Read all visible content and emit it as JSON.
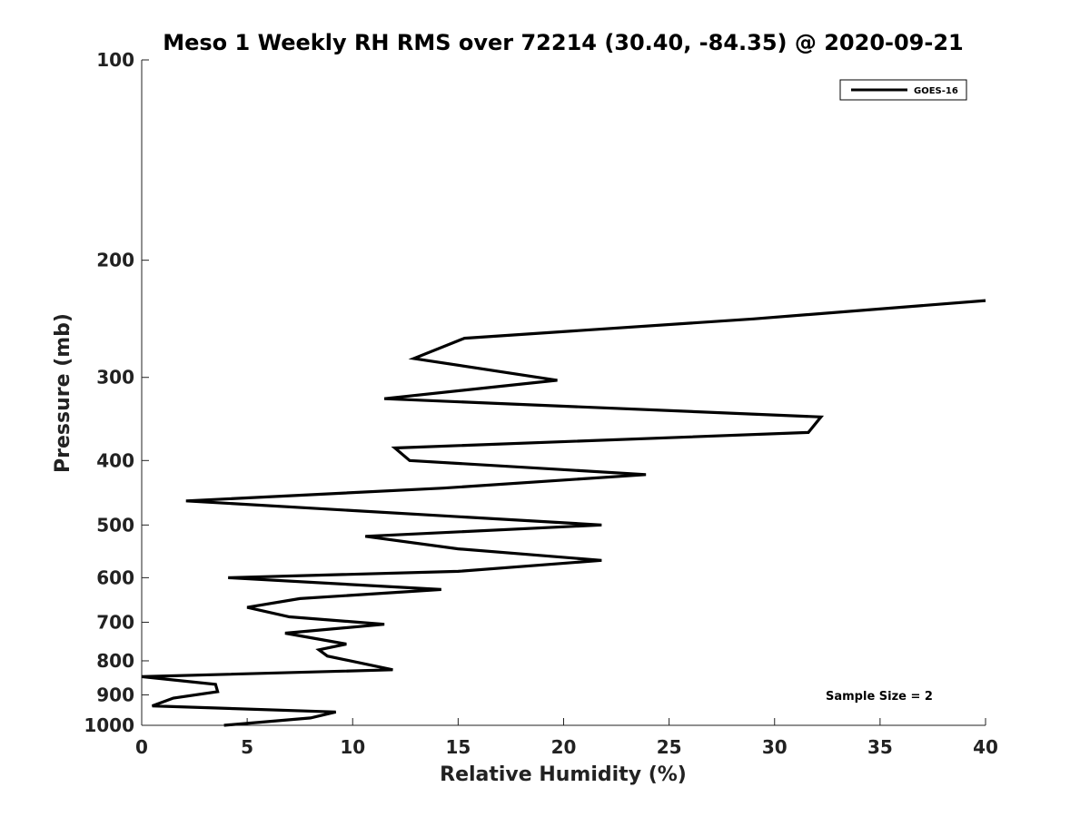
{
  "chart_data": {
    "type": "line",
    "title": "Meso 1 Weekly RH RMS over 72214 (30.40, -84.35) @ 2020-09-21",
    "xlabel": "Relative Humidity (%)",
    "ylabel": "Pressure (mb)",
    "xlim": [
      0,
      40
    ],
    "ylim": [
      1000,
      100
    ],
    "y_scale": "log",
    "x_ticks": [
      0,
      5,
      10,
      15,
      20,
      25,
      30,
      35,
      40
    ],
    "y_ticks": [
      100,
      200,
      300,
      400,
      500,
      600,
      700,
      800,
      900,
      1000
    ],
    "grid": false,
    "legend_position": "top-right",
    "annotation": "Sample Size = 2",
    "series": [
      {
        "name": "GOES-16",
        "color": "#000000",
        "points": [
          [
            40.0,
            230
          ],
          [
            29.0,
            245
          ],
          [
            15.3,
            262
          ],
          [
            12.9,
            281
          ],
          [
            19.7,
            303
          ],
          [
            11.5,
            323
          ],
          [
            32.2,
            344
          ],
          [
            31.6,
            363
          ],
          [
            12.0,
            383
          ],
          [
            12.7,
            400
          ],
          [
            23.9,
            420
          ],
          [
            14.3,
            440
          ],
          [
            2.1,
            460
          ],
          [
            21.8,
            500
          ],
          [
            10.6,
            520
          ],
          [
            15.0,
            543
          ],
          [
            21.8,
            565
          ],
          [
            15.0,
            587
          ],
          [
            4.1,
            600
          ],
          [
            14.2,
            625
          ],
          [
            7.5,
            645
          ],
          [
            5.0,
            665
          ],
          [
            7.0,
            687
          ],
          [
            11.5,
            705
          ],
          [
            6.8,
            727
          ],
          [
            9.7,
            755
          ],
          [
            8.4,
            770
          ],
          [
            8.8,
            787
          ],
          [
            11.9,
            825
          ],
          [
            0.0,
            845
          ],
          [
            3.5,
            868
          ],
          [
            3.6,
            890
          ],
          [
            1.5,
            910
          ],
          [
            0.5,
            935
          ],
          [
            9.2,
            955
          ],
          [
            8.0,
            975
          ],
          [
            3.9,
            1000
          ]
        ]
      }
    ]
  }
}
